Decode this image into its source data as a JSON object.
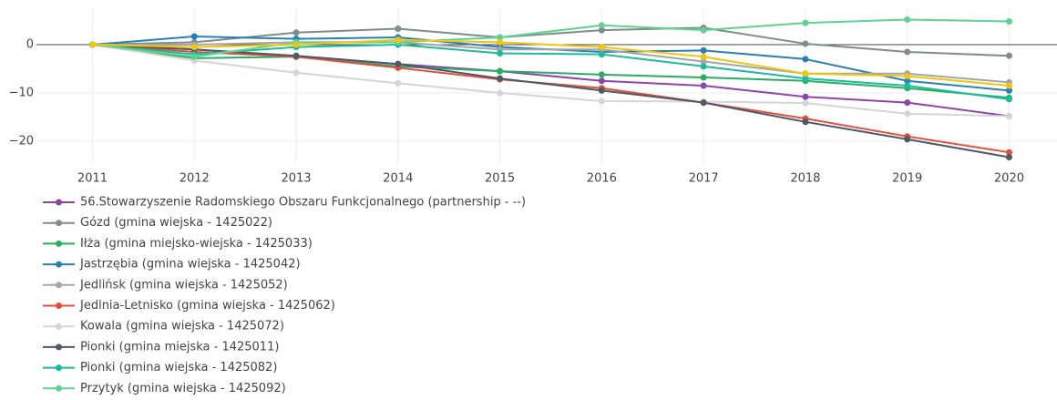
{
  "chart_data": {
    "type": "line",
    "x": [
      2011,
      2012,
      2013,
      2014,
      2015,
      2016,
      2017,
      2018,
      2019,
      2020
    ],
    "xlim": [
      2010.45,
      2020.47
    ],
    "xticks": [
      2011,
      2012,
      2013,
      2014,
      2015,
      2016,
      2017,
      2018,
      2019,
      2020
    ],
    "ylim": [
      -24.5,
      7.5
    ],
    "yticks": [
      {
        "value": -20,
        "label": "−20"
      },
      {
        "value": -10,
        "label": "−10"
      },
      0
    ],
    "grid": true,
    "series": [
      {
        "name": "56.Stowarzyszenie Radomskiego Obszaru Funkcjonalnego (partnership - --)",
        "color": "#8e44ad",
        "values": [
          0,
          -1,
          -2.5,
          -4,
          -5.5,
          -7.5,
          -8.5,
          -10.8,
          -12,
          -14.8
        ]
      },
      {
        "name": "Gózd (gmina wiejska - 1425022)",
        "color": "#7f8c8d",
        "values": [
          0,
          0.5,
          2.5,
          3.3,
          1.5,
          3,
          3.5,
          0.2,
          -1.5,
          -2.3
        ]
      },
      {
        "name": "Iłża (gmina miejsko-wiejska - 1425033)",
        "color": "#27ae60",
        "values": [
          0,
          -2.8,
          -2.5,
          -4.5,
          -5.5,
          -6.2,
          -6.8,
          -7.5,
          -9,
          -11
        ]
      },
      {
        "name": "Jastrzębia (gmina wiejska - 1425042)",
        "color": "#2980b9",
        "values": [
          0,
          1.7,
          1.2,
          1.5,
          -0.5,
          -1.5,
          -1.2,
          -3,
          -7.5,
          -9.5
        ]
      },
      {
        "name": "Jedlińsk (gmina wiejska - 1425052)",
        "color": "#a5a5a5",
        "values": [
          0,
          0,
          0.5,
          0.5,
          -1,
          -1,
          -3.5,
          -6,
          -6,
          -7.8
        ]
      },
      {
        "name": "Jedlnia-Letnisko (gmina wiejska - 1425062)",
        "color": "#e74c3c",
        "values": [
          0,
          -1.5,
          -2.5,
          -4.8,
          -7.2,
          -9,
          -12,
          -15.3,
          -19,
          -22.3
        ]
      },
      {
        "name": "Kowala (gmina wiejska - 1425072)",
        "color": "#d5d5d5",
        "values": [
          0,
          -3.3,
          -5.8,
          -8,
          -10,
          -11.7,
          -11.8,
          -12.1,
          -14.3,
          -14.8
        ]
      },
      {
        "name": "Pionki (gmina miejska - 1425011)",
        "color": "#4c5a68",
        "values": [
          0,
          -1,
          -2.3,
          -4,
          -7,
          -9.5,
          -12,
          -16,
          -19.6,
          -23.3
        ]
      },
      {
        "name": "Pionki (gmina wiejska - 1425082)",
        "color": "#1abc9c",
        "values": [
          0,
          -2,
          -0.5,
          0,
          -1.8,
          -2,
          -4.5,
          -7,
          -8.5,
          -11.3
        ]
      },
      {
        "name": "Przytyk (gmina wiejska - 1425092)",
        "color": "#5fd38d",
        "values": [
          0,
          -2.5,
          0.5,
          0.5,
          1.5,
          4,
          3,
          4.5,
          5.2,
          4.8
        ]
      },
      {
        "color": "#f1c40f",
        "values": [
          0,
          -0.5,
          0,
          1,
          0.5,
          -0.5,
          -2.5,
          -6,
          -6.5,
          -8.5
        ]
      }
    ]
  }
}
